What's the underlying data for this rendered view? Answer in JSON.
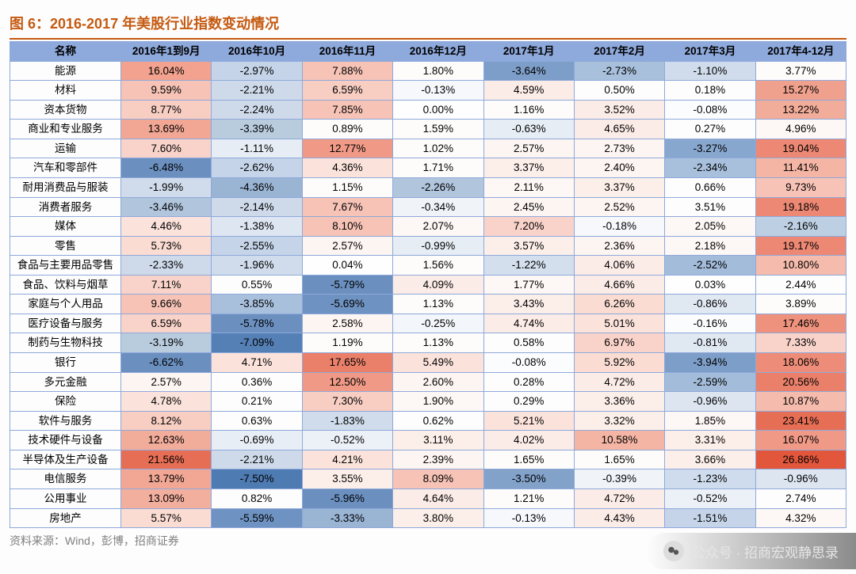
{
  "title": "图 6：2016-2017 年美股行业指数变动情况",
  "title_color": "#c55a11",
  "title_border_color": "#c55a11",
  "source": "资料来源：Wind，彭博，招商证券",
  "source_color": "#7f7f7f",
  "footer_text": "公众号 · 招商宏观静思录",
  "table": {
    "border_color": "#8ea9db",
    "header_bg": "#8ea9db",
    "header_fg": "#000000",
    "columns": [
      "名称",
      "2016年1到9月",
      "2016年10月",
      "2016年11月",
      "2016年12月",
      "2017年1月",
      "2017年2月",
      "2017年3月",
      "2017年4-12月"
    ],
    "rows": [
      {
        "name": "能源",
        "cells": [
          {
            "v": "16.04%",
            "bg": "#f2a28e"
          },
          {
            "v": "-2.97%",
            "bg": "#c5d4e8"
          },
          {
            "v": "7.88%",
            "bg": "#f6c3b6"
          },
          {
            "v": "1.80%",
            "bg": "#fefcfb"
          },
          {
            "v": "-3.64%",
            "bg": "#7d9ec8"
          },
          {
            "v": "-2.73%",
            "bg": "#a8c0dc"
          },
          {
            "v": "-1.10%",
            "bg": "#d0dceb"
          },
          {
            "v": "3.77%",
            "bg": "#fefcfb"
          }
        ]
      },
      {
        "name": "材料",
        "cells": [
          {
            "v": "9.59%",
            "bg": "#f6c3b6"
          },
          {
            "v": "-2.21%",
            "bg": "#cedaea"
          },
          {
            "v": "6.59%",
            "bg": "#f8cec3"
          },
          {
            "v": "-0.13%",
            "bg": "#f6f8fb"
          },
          {
            "v": "4.59%",
            "bg": "#fcece7"
          },
          {
            "v": "0.50%",
            "bg": "#fefdfd"
          },
          {
            "v": "0.18%",
            "bg": "#fefdfd"
          },
          {
            "v": "15.27%",
            "bg": "#f0a18e"
          }
        ]
      },
      {
        "name": "资本货物",
        "cells": [
          {
            "v": "8.77%",
            "bg": "#f8cec3"
          },
          {
            "v": "-2.24%",
            "bg": "#cedaea"
          },
          {
            "v": "7.85%",
            "bg": "#f6c3b6"
          },
          {
            "v": "0.00%",
            "bg": "#fefefe"
          },
          {
            "v": "1.16%",
            "bg": "#fefcfb"
          },
          {
            "v": "3.52%",
            "bg": "#fcece7"
          },
          {
            "v": "-0.08%",
            "bg": "#fbfcfd"
          },
          {
            "v": "13.22%",
            "bg": "#f2ac9a"
          }
        ]
      },
      {
        "name": "商业和专业服务",
        "cells": [
          {
            "v": "13.69%",
            "bg": "#f2a795"
          },
          {
            "v": "-3.39%",
            "bg": "#b9ccde"
          },
          {
            "v": "0.89%",
            "bg": "#fefcfb"
          },
          {
            "v": "1.59%",
            "bg": "#fefcfb"
          },
          {
            "v": "-0.63%",
            "bg": "#e6edf5"
          },
          {
            "v": "4.65%",
            "bg": "#fcece7"
          },
          {
            "v": "0.27%",
            "bg": "#fefdfd"
          },
          {
            "v": "4.96%",
            "bg": "#fdf7f5"
          }
        ]
      },
      {
        "name": "运输",
        "cells": [
          {
            "v": "7.60%",
            "bg": "#f9d3ca"
          },
          {
            "v": "-1.11%",
            "bg": "#e6edf5"
          },
          {
            "v": "12.77%",
            "bg": "#ef9986"
          },
          {
            "v": "1.02%",
            "bg": "#fefcfb"
          },
          {
            "v": "2.57%",
            "bg": "#fdf5f2"
          },
          {
            "v": "2.73%",
            "bg": "#fdf5f2"
          },
          {
            "v": "-3.27%",
            "bg": "#88a7ce"
          },
          {
            "v": "19.04%",
            "bg": "#ec8874"
          }
        ]
      },
      {
        "name": "汽车和零部件",
        "cells": [
          {
            "v": "-6.48%",
            "bg": "#6b90c0"
          },
          {
            "v": "-2.62%",
            "bg": "#c5d4e8"
          },
          {
            "v": "4.36%",
            "bg": "#fbe3dc"
          },
          {
            "v": "1.71%",
            "bg": "#fefcfb"
          },
          {
            "v": "3.37%",
            "bg": "#fcefe9"
          },
          {
            "v": "2.40%",
            "bg": "#fdf5f2"
          },
          {
            "v": "-2.34%",
            "bg": "#a8c0dc"
          },
          {
            "v": "11.41%",
            "bg": "#f4b5a5"
          }
        ]
      },
      {
        "name": "耐用消费品与服装",
        "cells": [
          {
            "v": "-1.99%",
            "bg": "#d0dceb"
          },
          {
            "v": "-4.36%",
            "bg": "#9ab4d4"
          },
          {
            "v": "1.15%",
            "bg": "#fefcfb"
          },
          {
            "v": "-2.26%",
            "bg": "#b1c5dd"
          },
          {
            "v": "2.11%",
            "bg": "#fdf7f5"
          },
          {
            "v": "3.37%",
            "bg": "#fcefe9"
          },
          {
            "v": "0.66%",
            "bg": "#fefdfd"
          },
          {
            "v": "9.73%",
            "bg": "#f7c3b6"
          }
        ]
      },
      {
        "name": "消费者服务",
        "cells": [
          {
            "v": "-3.46%",
            "bg": "#b1c5dd"
          },
          {
            "v": "-2.14%",
            "bg": "#cedaea"
          },
          {
            "v": "7.67%",
            "bg": "#f6c3b6"
          },
          {
            "v": "-0.34%",
            "bg": "#f0f4f9"
          },
          {
            "v": "2.45%",
            "bg": "#fdf5f2"
          },
          {
            "v": "2.52%",
            "bg": "#fdf5f2"
          },
          {
            "v": "3.51%",
            "bg": "#fefdfd"
          },
          {
            "v": "19.18%",
            "bg": "#ec8874"
          }
        ]
      },
      {
        "name": "媒体",
        "cells": [
          {
            "v": "4.46%",
            "bg": "#fbe3dc"
          },
          {
            "v": "-1.38%",
            "bg": "#dde6f1"
          },
          {
            "v": "8.10%",
            "bg": "#f6c3b6"
          },
          {
            "v": "2.07%",
            "bg": "#fdf7f5"
          },
          {
            "v": "7.20%",
            "bg": "#f9d3ca"
          },
          {
            "v": "-0.18%",
            "bg": "#f6f8fb"
          },
          {
            "v": "2.05%",
            "bg": "#fdf7f5"
          },
          {
            "v": "-2.16%",
            "bg": "#bdd0e3"
          }
        ]
      },
      {
        "name": "零售",
        "cells": [
          {
            "v": "5.73%",
            "bg": "#fadcd3"
          },
          {
            "v": "-2.55%",
            "bg": "#c5d4e8"
          },
          {
            "v": "2.57%",
            "bg": "#fdf5f2"
          },
          {
            "v": "-0.99%",
            "bg": "#e6edf5"
          },
          {
            "v": "3.57%",
            "bg": "#fcefe9"
          },
          {
            "v": "2.36%",
            "bg": "#fdf5f2"
          },
          {
            "v": "2.18%",
            "bg": "#fdf7f5"
          },
          {
            "v": "19.17%",
            "bg": "#ec8874"
          }
        ]
      },
      {
        "name": "食品与主要用品零售",
        "cells": [
          {
            "v": "-2.33%",
            "bg": "#cedaea"
          },
          {
            "v": "-1.96%",
            "bg": "#d0dceb"
          },
          {
            "v": "0.04%",
            "bg": "#fefefe"
          },
          {
            "v": "1.56%",
            "bg": "#fefcfb"
          },
          {
            "v": "-1.22%",
            "bg": "#d4dfed"
          },
          {
            "v": "4.06%",
            "bg": "#fcece7"
          },
          {
            "v": "-2.52%",
            "bg": "#a3bcd9"
          },
          {
            "v": "10.80%",
            "bg": "#f5bbac"
          }
        ]
      },
      {
        "name": "食品、饮料与烟草",
        "cells": [
          {
            "v": "7.11%",
            "bg": "#f9d3ca"
          },
          {
            "v": "0.55%",
            "bg": "#fefdfd"
          },
          {
            "v": "-5.79%",
            "bg": "#6b90c0"
          },
          {
            "v": "4.09%",
            "bg": "#fcece7"
          },
          {
            "v": "1.77%",
            "bg": "#fdf7f5"
          },
          {
            "v": "4.66%",
            "bg": "#fcece7"
          },
          {
            "v": "0.03%",
            "bg": "#fefefe"
          },
          {
            "v": "2.44%",
            "bg": "#fefdfd"
          }
        ]
      },
      {
        "name": "家庭与个人用品",
        "cells": [
          {
            "v": "9.66%",
            "bg": "#f6c3b6"
          },
          {
            "v": "-3.85%",
            "bg": "#a8c0dc"
          },
          {
            "v": "-5.69%",
            "bg": "#6e92c1"
          },
          {
            "v": "1.13%",
            "bg": "#fefcfb"
          },
          {
            "v": "3.43%",
            "bg": "#fcefe9"
          },
          {
            "v": "6.26%",
            "bg": "#fadcd3"
          },
          {
            "v": "-0.86%",
            "bg": "#e0e8f2"
          },
          {
            "v": "3.89%",
            "bg": "#fefcfb"
          }
        ]
      },
      {
        "name": "医疗设备与服务",
        "cells": [
          {
            "v": "6.59%",
            "bg": "#f9d3ca"
          },
          {
            "v": "-5.78%",
            "bg": "#6b90c0"
          },
          {
            "v": "2.58%",
            "bg": "#fdf5f2"
          },
          {
            "v": "-0.25%",
            "bg": "#f3f6fa"
          },
          {
            "v": "4.74%",
            "bg": "#fcece7"
          },
          {
            "v": "5.01%",
            "bg": "#fbe3dc"
          },
          {
            "v": "-0.16%",
            "bg": "#fbfcfd"
          },
          {
            "v": "17.46%",
            "bg": "#ee927e"
          }
        ]
      },
      {
        "name": "制药与生物科技",
        "cells": [
          {
            "v": "-3.19%",
            "bg": "#b9ccde"
          },
          {
            "v": "-7.09%",
            "bg": "#5580b6"
          },
          {
            "v": "1.19%",
            "bg": "#fefcfb"
          },
          {
            "v": "1.13%",
            "bg": "#fefcfb"
          },
          {
            "v": "0.58%",
            "bg": "#fefdfd"
          },
          {
            "v": "6.97%",
            "bg": "#f9d3ca"
          },
          {
            "v": "-0.81%",
            "bg": "#e0e8f2"
          },
          {
            "v": "7.33%",
            "bg": "#f9d3ca"
          }
        ]
      },
      {
        "name": "银行",
        "cells": [
          {
            "v": "-6.62%",
            "bg": "#6b90c0"
          },
          {
            "v": "4.71%",
            "bg": "#fbe3dc"
          },
          {
            "v": "17.65%",
            "bg": "#ea806a"
          },
          {
            "v": "5.49%",
            "bg": "#fbe3dc"
          },
          {
            "v": "-0.08%",
            "bg": "#fbfcfd"
          },
          {
            "v": "5.92%",
            "bg": "#fadcd3"
          },
          {
            "v": "-3.94%",
            "bg": "#7d9ec8"
          },
          {
            "v": "18.06%",
            "bg": "#ed8d79"
          }
        ]
      },
      {
        "name": "多元金融",
        "cells": [
          {
            "v": "2.57%",
            "bg": "#fdf5f2"
          },
          {
            "v": "0.36%",
            "bg": "#fefdfd"
          },
          {
            "v": "12.50%",
            "bg": "#ef9986"
          },
          {
            "v": "2.60%",
            "bg": "#fdf5f2"
          },
          {
            "v": "0.28%",
            "bg": "#fefdfd"
          },
          {
            "v": "4.72%",
            "bg": "#fcece7"
          },
          {
            "v": "-2.59%",
            "bg": "#a3bcd9"
          },
          {
            "v": "20.56%",
            "bg": "#ea806a"
          }
        ]
      },
      {
        "name": "保险",
        "cells": [
          {
            "v": "4.78%",
            "bg": "#fbe3dc"
          },
          {
            "v": "0.21%",
            "bg": "#fefdfd"
          },
          {
            "v": "7.30%",
            "bg": "#f8cec3"
          },
          {
            "v": "1.90%",
            "bg": "#fdf7f5"
          },
          {
            "v": "0.29%",
            "bg": "#fefdfd"
          },
          {
            "v": "3.36%",
            "bg": "#fcefe9"
          },
          {
            "v": "-0.96%",
            "bg": "#dce5f0"
          },
          {
            "v": "10.87%",
            "bg": "#f5bbac"
          }
        ]
      },
      {
        "name": "软件与服务",
        "cells": [
          {
            "v": "8.12%",
            "bg": "#f8cec3"
          },
          {
            "v": "0.63%",
            "bg": "#fefdfd"
          },
          {
            "v": "-1.83%",
            "bg": "#d0dceb"
          },
          {
            "v": "0.62%",
            "bg": "#fefdfd"
          },
          {
            "v": "5.21%",
            "bg": "#fbe3dc"
          },
          {
            "v": "3.32%",
            "bg": "#fcefe9"
          },
          {
            "v": "1.85%",
            "bg": "#fdf7f5"
          },
          {
            "v": "23.41%",
            "bg": "#e66e55"
          }
        ]
      },
      {
        "name": "技术硬件与设备",
        "cells": [
          {
            "v": "12.63%",
            "bg": "#f2ac9a"
          },
          {
            "v": "-0.69%",
            "bg": "#e8eef5"
          },
          {
            "v": "-0.52%",
            "bg": "#ecf1f7"
          },
          {
            "v": "3.11%",
            "bg": "#fcefe9"
          },
          {
            "v": "4.02%",
            "bg": "#fcece7"
          },
          {
            "v": "10.58%",
            "bg": "#f4b5a5"
          },
          {
            "v": "3.31%",
            "bg": "#fcefe9"
          },
          {
            "v": "16.07%",
            "bg": "#ef9986"
          }
        ]
      },
      {
        "name": "半导体及生产设备",
        "cells": [
          {
            "v": "21.56%",
            "bg": "#e66e55"
          },
          {
            "v": "-2.21%",
            "bg": "#cedaea"
          },
          {
            "v": "4.21%",
            "bg": "#fbe3dc"
          },
          {
            "v": "2.39%",
            "bg": "#fdf5f2"
          },
          {
            "v": "1.65%",
            "bg": "#fefcfb"
          },
          {
            "v": "1.65%",
            "bg": "#fefcfb"
          },
          {
            "v": "3.66%",
            "bg": "#fcefe9"
          },
          {
            "v": "26.86%",
            "bg": "#e2573c"
          }
        ]
      },
      {
        "name": "电信服务",
        "cells": [
          {
            "v": "13.79%",
            "bg": "#f2a795"
          },
          {
            "v": "-7.50%",
            "bg": "#4f7bb3"
          },
          {
            "v": "3.55%",
            "bg": "#fcefe9"
          },
          {
            "v": "8.09%",
            "bg": "#f6c3b6"
          },
          {
            "v": "-3.50%",
            "bg": "#82a2ca"
          },
          {
            "v": "-0.39%",
            "bg": "#f0f4f9"
          },
          {
            "v": "-1.23%",
            "bg": "#cfdced"
          },
          {
            "v": "-0.96%",
            "bg": "#dce5f0"
          }
        ]
      },
      {
        "name": "公用事业",
        "cells": [
          {
            "v": "13.09%",
            "bg": "#f3af9e"
          },
          {
            "v": "0.82%",
            "bg": "#fefdfd"
          },
          {
            "v": "-5.96%",
            "bg": "#6b90c0"
          },
          {
            "v": "4.64%",
            "bg": "#fcece7"
          },
          {
            "v": "1.21%",
            "bg": "#fefcfb"
          },
          {
            "v": "4.72%",
            "bg": "#fcece7"
          },
          {
            "v": "-0.52%",
            "bg": "#ecf1f7"
          },
          {
            "v": "2.74%",
            "bg": "#fefdfd"
          }
        ]
      },
      {
        "name": "房地产",
        "cells": [
          {
            "v": "5.57%",
            "bg": "#fadcd3"
          },
          {
            "v": "-5.59%",
            "bg": "#6e92c1"
          },
          {
            "v": "-3.33%",
            "bg": "#9ab4d4"
          },
          {
            "v": "3.80%",
            "bg": "#fcefe9"
          },
          {
            "v": "-0.13%",
            "bg": "#f6f8fb"
          },
          {
            "v": "4.43%",
            "bg": "#fcece7"
          },
          {
            "v": "-1.51%",
            "bg": "#c5d4e8"
          },
          {
            "v": "4.32%",
            "bg": "#fdf7f5"
          }
        ]
      }
    ]
  }
}
